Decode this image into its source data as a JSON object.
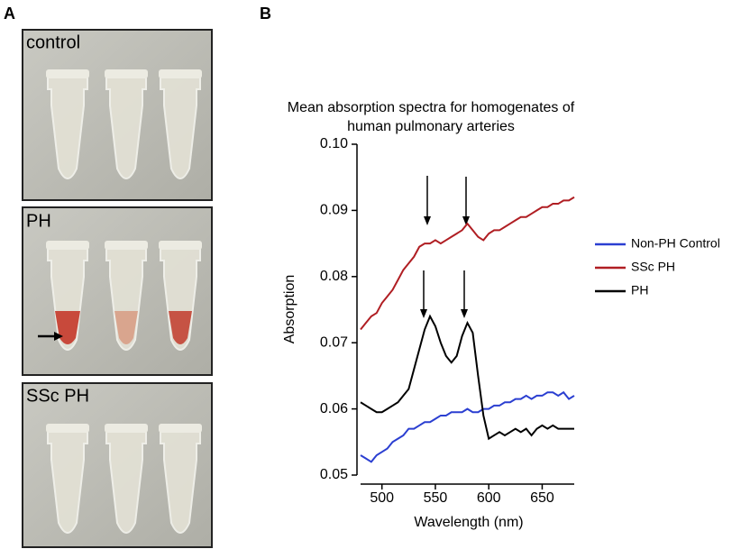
{
  "panel_labels": [
    "A",
    "B"
  ],
  "photo_labels": [
    "control",
    "PH",
    "SSc PH"
  ],
  "chart_data": {
    "type": "line",
    "title": [
      "Mean absorption spectra for homogenates of",
      "human pulmonary arteries"
    ],
    "x_label": "Wavelength (nm)",
    "y_label": "Absorption",
    "x": [
      480,
      485,
      490,
      495,
      500,
      505,
      510,
      515,
      520,
      525,
      530,
      535,
      540,
      545,
      550,
      555,
      560,
      565,
      570,
      575,
      580,
      585,
      590,
      595,
      600,
      605,
      610,
      615,
      620,
      625,
      630,
      635,
      640,
      645,
      650,
      655,
      660,
      665,
      670,
      675,
      680
    ],
    "series": [
      {
        "name": "Non-PH Control",
        "color": "#2b3fd1",
        "values": [
          0.053,
          0.0525,
          0.052,
          0.053,
          0.0535,
          0.054,
          0.055,
          0.0555,
          0.056,
          0.057,
          0.057,
          0.0575,
          0.058,
          0.058,
          0.0585,
          0.059,
          0.059,
          0.0595,
          0.0595,
          0.0595,
          0.06,
          0.0595,
          0.0595,
          0.06,
          0.06,
          0.0605,
          0.0605,
          0.061,
          0.061,
          0.0615,
          0.0615,
          0.062,
          0.0615,
          0.062,
          0.062,
          0.0625,
          0.0625,
          0.062,
          0.0625,
          0.0615,
          0.062
        ]
      },
      {
        "name": "SSc PH",
        "color": "#b01e23",
        "values": [
          0.072,
          0.073,
          0.074,
          0.0745,
          0.076,
          0.077,
          0.078,
          0.0795,
          0.081,
          0.082,
          0.083,
          0.0845,
          0.085,
          0.085,
          0.0855,
          0.085,
          0.0855,
          0.086,
          0.0865,
          0.087,
          0.088,
          0.087,
          0.086,
          0.0855,
          0.0865,
          0.087,
          0.087,
          0.0875,
          0.088,
          0.0885,
          0.089,
          0.089,
          0.0895,
          0.09,
          0.0905,
          0.0905,
          0.091,
          0.091,
          0.0915,
          0.0915,
          0.092
        ]
      },
      {
        "name": "PH",
        "color": "#000000",
        "values": [
          0.061,
          0.0605,
          0.06,
          0.0595,
          0.0595,
          0.06,
          0.0605,
          0.061,
          0.062,
          0.063,
          0.066,
          0.069,
          0.072,
          0.074,
          0.0725,
          0.07,
          0.068,
          0.067,
          0.068,
          0.071,
          0.073,
          0.0715,
          0.065,
          0.059,
          0.0555,
          0.056,
          0.0565,
          0.056,
          0.0565,
          0.057,
          0.0565,
          0.057,
          0.056,
          0.057,
          0.0575,
          0.057,
          0.0575,
          0.057,
          0.057,
          0.057,
          0.057
        ]
      }
    ],
    "xlim": [
      480,
      680
    ],
    "xticks": [
      500,
      550,
      600,
      650
    ],
    "ylim": [
      0.05,
      0.1
    ],
    "yticks": [
      0.05,
      0.06,
      0.07,
      0.08,
      0.09,
      {
        "value": 0.1,
        "label": "0.10"
      }
    ],
    "legend": "right"
  }
}
